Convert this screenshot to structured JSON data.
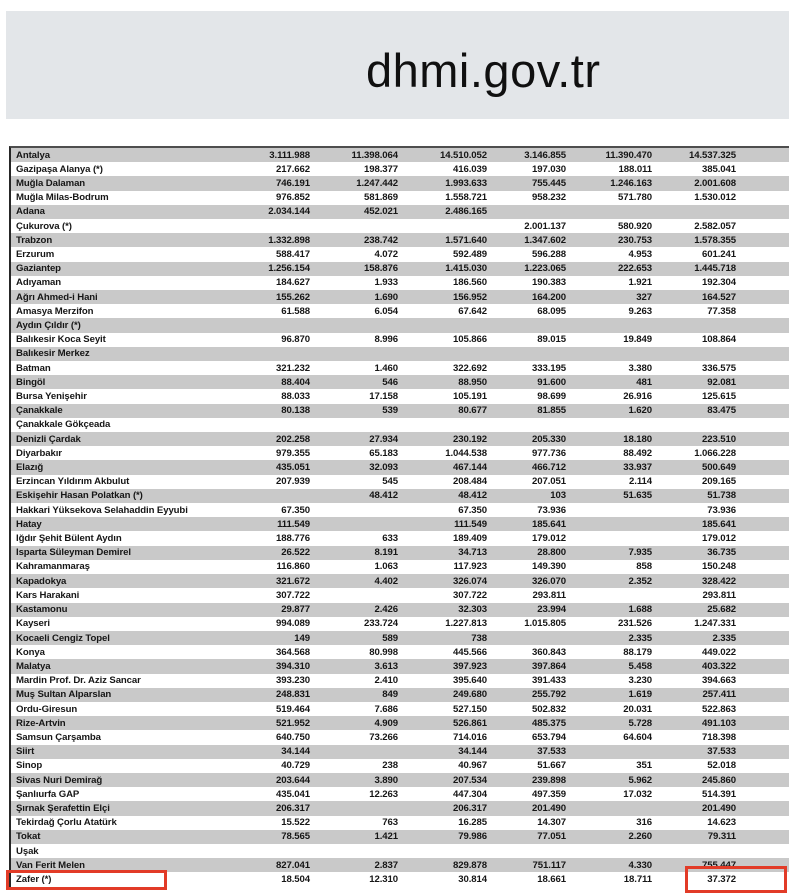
{
  "header": {
    "title": "dhmi.gov.tr"
  },
  "colors": {
    "header_band": "#e3e6e9",
    "row_stripe": "#c9c9c9",
    "highlight_red": "#e23b27"
  },
  "table": {
    "rows": [
      {
        "name": "Antalya",
        "values": [
          "3.111.988",
          "11.398.064",
          "14.510.052",
          "3.146.855",
          "11.390.470",
          "14.537.325"
        ]
      },
      {
        "name": "Gazipaşa Alanya (*)",
        "values": [
          "217.662",
          "198.377",
          "416.039",
          "197.030",
          "188.011",
          "385.041"
        ]
      },
      {
        "name": "Muğla Dalaman",
        "values": [
          "746.191",
          "1.247.442",
          "1.993.633",
          "755.445",
          "1.246.163",
          "2.001.608"
        ]
      },
      {
        "name": "Muğla Milas-Bodrum",
        "values": [
          "976.852",
          "581.869",
          "1.558.721",
          "958.232",
          "571.780",
          "1.530.012"
        ]
      },
      {
        "name": "Adana",
        "values": [
          "2.034.144",
          "452.021",
          "2.486.165",
          "",
          "",
          ""
        ]
      },
      {
        "name": "Çukurova (*)",
        "values": [
          "",
          "",
          "",
          "2.001.137",
          "580.920",
          "2.582.057"
        ]
      },
      {
        "name": "Trabzon",
        "values": [
          "1.332.898",
          "238.742",
          "1.571.640",
          "1.347.602",
          "230.753",
          "1.578.355"
        ]
      },
      {
        "name": "Erzurum",
        "values": [
          "588.417",
          "4.072",
          "592.489",
          "596.288",
          "4.953",
          "601.241"
        ]
      },
      {
        "name": "Gaziantep",
        "values": [
          "1.256.154",
          "158.876",
          "1.415.030",
          "1.223.065",
          "222.653",
          "1.445.718"
        ]
      },
      {
        "name": "Adıyaman",
        "values": [
          "184.627",
          "1.933",
          "186.560",
          "190.383",
          "1.921",
          "192.304"
        ]
      },
      {
        "name": "Ağrı Ahmed-i Hani",
        "values": [
          "155.262",
          "1.690",
          "156.952",
          "164.200",
          "327",
          "164.527"
        ]
      },
      {
        "name": "Amasya Merzifon",
        "values": [
          "61.588",
          "6.054",
          "67.642",
          "68.095",
          "9.263",
          "77.358"
        ]
      },
      {
        "name": "Aydın Çıldır (*)",
        "values": [
          "",
          "",
          "",
          "",
          "",
          ""
        ]
      },
      {
        "name": "Balıkesir Koca Seyit",
        "values": [
          "96.870",
          "8.996",
          "105.866",
          "89.015",
          "19.849",
          "108.864"
        ]
      },
      {
        "name": "Balıkesir Merkez",
        "values": [
          "",
          "",
          "",
          "",
          "",
          ""
        ]
      },
      {
        "name": "Batman",
        "values": [
          "321.232",
          "1.460",
          "322.692",
          "333.195",
          "3.380",
          "336.575"
        ]
      },
      {
        "name": "Bingöl",
        "values": [
          "88.404",
          "546",
          "88.950",
          "91.600",
          "481",
          "92.081"
        ]
      },
      {
        "name": "Bursa Yenişehir",
        "values": [
          "88.033",
          "17.158",
          "105.191",
          "98.699",
          "26.916",
          "125.615"
        ]
      },
      {
        "name": "Çanakkale",
        "values": [
          "80.138",
          "539",
          "80.677",
          "81.855",
          "1.620",
          "83.475"
        ]
      },
      {
        "name": "Çanakkale Gökçeada",
        "values": [
          "",
          "",
          "",
          "",
          "",
          ""
        ]
      },
      {
        "name": "Denizli Çardak",
        "values": [
          "202.258",
          "27.934",
          "230.192",
          "205.330",
          "18.180",
          "223.510"
        ]
      },
      {
        "name": "Diyarbakır",
        "values": [
          "979.355",
          "65.183",
          "1.044.538",
          "977.736",
          "88.492",
          "1.066.228"
        ]
      },
      {
        "name": "Elazığ",
        "values": [
          "435.051",
          "32.093",
          "467.144",
          "466.712",
          "33.937",
          "500.649"
        ]
      },
      {
        "name": "Erzincan Yıldırım Akbulut",
        "values": [
          "207.939",
          "545",
          "208.484",
          "207.051",
          "2.114",
          "209.165"
        ]
      },
      {
        "name": "Eskişehir Hasan Polatkan (*)",
        "values": [
          "",
          "48.412",
          "48.412",
          "103",
          "51.635",
          "51.738"
        ]
      },
      {
        "name": "Hakkari Yüksekova Selahaddin Eyyubi",
        "values": [
          "67.350",
          "",
          "67.350",
          "73.936",
          "",
          "73.936"
        ]
      },
      {
        "name": "Hatay",
        "values": [
          "111.549",
          "",
          "111.549",
          "185.641",
          "",
          "185.641"
        ]
      },
      {
        "name": "Iğdır Şehit Bülent Aydın",
        "values": [
          "188.776",
          "633",
          "189.409",
          "179.012",
          "",
          "179.012"
        ]
      },
      {
        "name": "Isparta Süleyman Demirel",
        "values": [
          "26.522",
          "8.191",
          "34.713",
          "28.800",
          "7.935",
          "36.735"
        ]
      },
      {
        "name": "Kahramanmaraş",
        "values": [
          "116.860",
          "1.063",
          "117.923",
          "149.390",
          "858",
          "150.248"
        ]
      },
      {
        "name": "Kapadokya",
        "values": [
          "321.672",
          "4.402",
          "326.074",
          "326.070",
          "2.352",
          "328.422"
        ]
      },
      {
        "name": "Kars Harakani",
        "values": [
          "307.722",
          "",
          "307.722",
          "293.811",
          "",
          "293.811"
        ]
      },
      {
        "name": "Kastamonu",
        "values": [
          "29.877",
          "2.426",
          "32.303",
          "23.994",
          "1.688",
          "25.682"
        ]
      },
      {
        "name": "Kayseri",
        "values": [
          "994.089",
          "233.724",
          "1.227.813",
          "1.015.805",
          "231.526",
          "1.247.331"
        ]
      },
      {
        "name": "Kocaeli Cengiz Topel",
        "values": [
          "149",
          "589",
          "738",
          "",
          "2.335",
          "2.335"
        ]
      },
      {
        "name": "Konya",
        "values": [
          "364.568",
          "80.998",
          "445.566",
          "360.843",
          "88.179",
          "449.022"
        ]
      },
      {
        "name": "Malatya",
        "values": [
          "394.310",
          "3.613",
          "397.923",
          "397.864",
          "5.458",
          "403.322"
        ]
      },
      {
        "name": "Mardin Prof. Dr. Aziz Sancar",
        "values": [
          "393.230",
          "2.410",
          "395.640",
          "391.433",
          "3.230",
          "394.663"
        ]
      },
      {
        "name": "Muş Sultan Alparslan",
        "values": [
          "248.831",
          "849",
          "249.680",
          "255.792",
          "1.619",
          "257.411"
        ]
      },
      {
        "name": "Ordu-Giresun",
        "values": [
          "519.464",
          "7.686",
          "527.150",
          "502.832",
          "20.031",
          "522.863"
        ]
      },
      {
        "name": "Rize-Artvin",
        "values": [
          "521.952",
          "4.909",
          "526.861",
          "485.375",
          "5.728",
          "491.103"
        ]
      },
      {
        "name": "Samsun Çarşamba",
        "values": [
          "640.750",
          "73.266",
          "714.016",
          "653.794",
          "64.604",
          "718.398"
        ]
      },
      {
        "name": "Siirt",
        "values": [
          "34.144",
          "",
          "34.144",
          "37.533",
          "",
          "37.533"
        ]
      },
      {
        "name": "Sinop",
        "values": [
          "40.729",
          "238",
          "40.967",
          "51.667",
          "351",
          "52.018"
        ]
      },
      {
        "name": "Sivas Nuri Demirağ",
        "values": [
          "203.644",
          "3.890",
          "207.534",
          "239.898",
          "5.962",
          "245.860"
        ]
      },
      {
        "name": "Şanlıurfa GAP",
        "values": [
          "435.041",
          "12.263",
          "447.304",
          "497.359",
          "17.032",
          "514.391"
        ]
      },
      {
        "name": "Şırnak Şerafettin Elçi",
        "values": [
          "206.317",
          "",
          "206.317",
          "201.490",
          "",
          "201.490"
        ]
      },
      {
        "name": "Tekirdağ Çorlu Atatürk",
        "values": [
          "15.522",
          "763",
          "16.285",
          "14.307",
          "316",
          "14.623"
        ]
      },
      {
        "name": "Tokat",
        "values": [
          "78.565",
          "1.421",
          "79.986",
          "77.051",
          "2.260",
          "79.311"
        ]
      },
      {
        "name": "Uşak",
        "values": [
          "",
          "",
          "",
          "",
          "",
          ""
        ]
      },
      {
        "name": "Van Ferit Melen",
        "values": [
          "827.041",
          "2.837",
          "829.878",
          "751.117",
          "4.330",
          "755.447"
        ]
      },
      {
        "name": "Zafer (*)",
        "values": [
          "18.504",
          "12.310",
          "30.814",
          "18.661",
          "18.711",
          "37.372"
        ]
      }
    ]
  },
  "highlights": {
    "zafer_name_box": "highlight around Zafer (*) row name",
    "zafer_total_box": "highlight around value 37.372"
  }
}
